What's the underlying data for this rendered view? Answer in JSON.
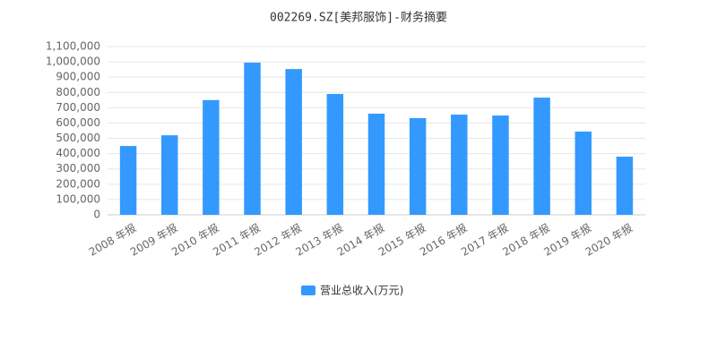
{
  "chart_data": {
    "type": "bar",
    "title": "002269.SZ[美邦服饰]-财务摘要",
    "categories": [
      "2008 年报",
      "2009 年报",
      "2010 年报",
      "2011 年报",
      "2012 年报",
      "2013 年报",
      "2014 年报",
      "2015 年报",
      "2016 年报",
      "2017 年报",
      "2018 年报",
      "2019 年报",
      "2020 年报"
    ],
    "series": [
      {
        "name": "营业总收入(万元)",
        "color": "#3399ff",
        "values": [
          450000,
          520000,
          750000,
          995000,
          953000,
          790000,
          661000,
          632000,
          655000,
          649000,
          766000,
          544000,
          380000
        ]
      }
    ],
    "ylim": [
      0,
      1100000
    ],
    "yticks": [
      0,
      {
        "value": 100000,
        "label": "100,000"
      },
      {
        "value": 200000,
        "label": "200,000"
      },
      {
        "value": 300000,
        "label": "300,000"
      },
      {
        "value": 400000,
        "label": "400,000"
      },
      {
        "value": 500000,
        "label": "500,000"
      },
      {
        "value": 600000,
        "label": "600,000"
      },
      {
        "value": 700000,
        "label": "700,000"
      },
      {
        "value": 800000,
        "label": "800,000"
      },
      {
        "value": 900000,
        "label": "900,000"
      },
      {
        "value": 1000000,
        "label": "1,000,000"
      },
      {
        "value": 1100000,
        "label": "1,100,000"
      }
    ],
    "grid": true,
    "legend": "bottom"
  }
}
